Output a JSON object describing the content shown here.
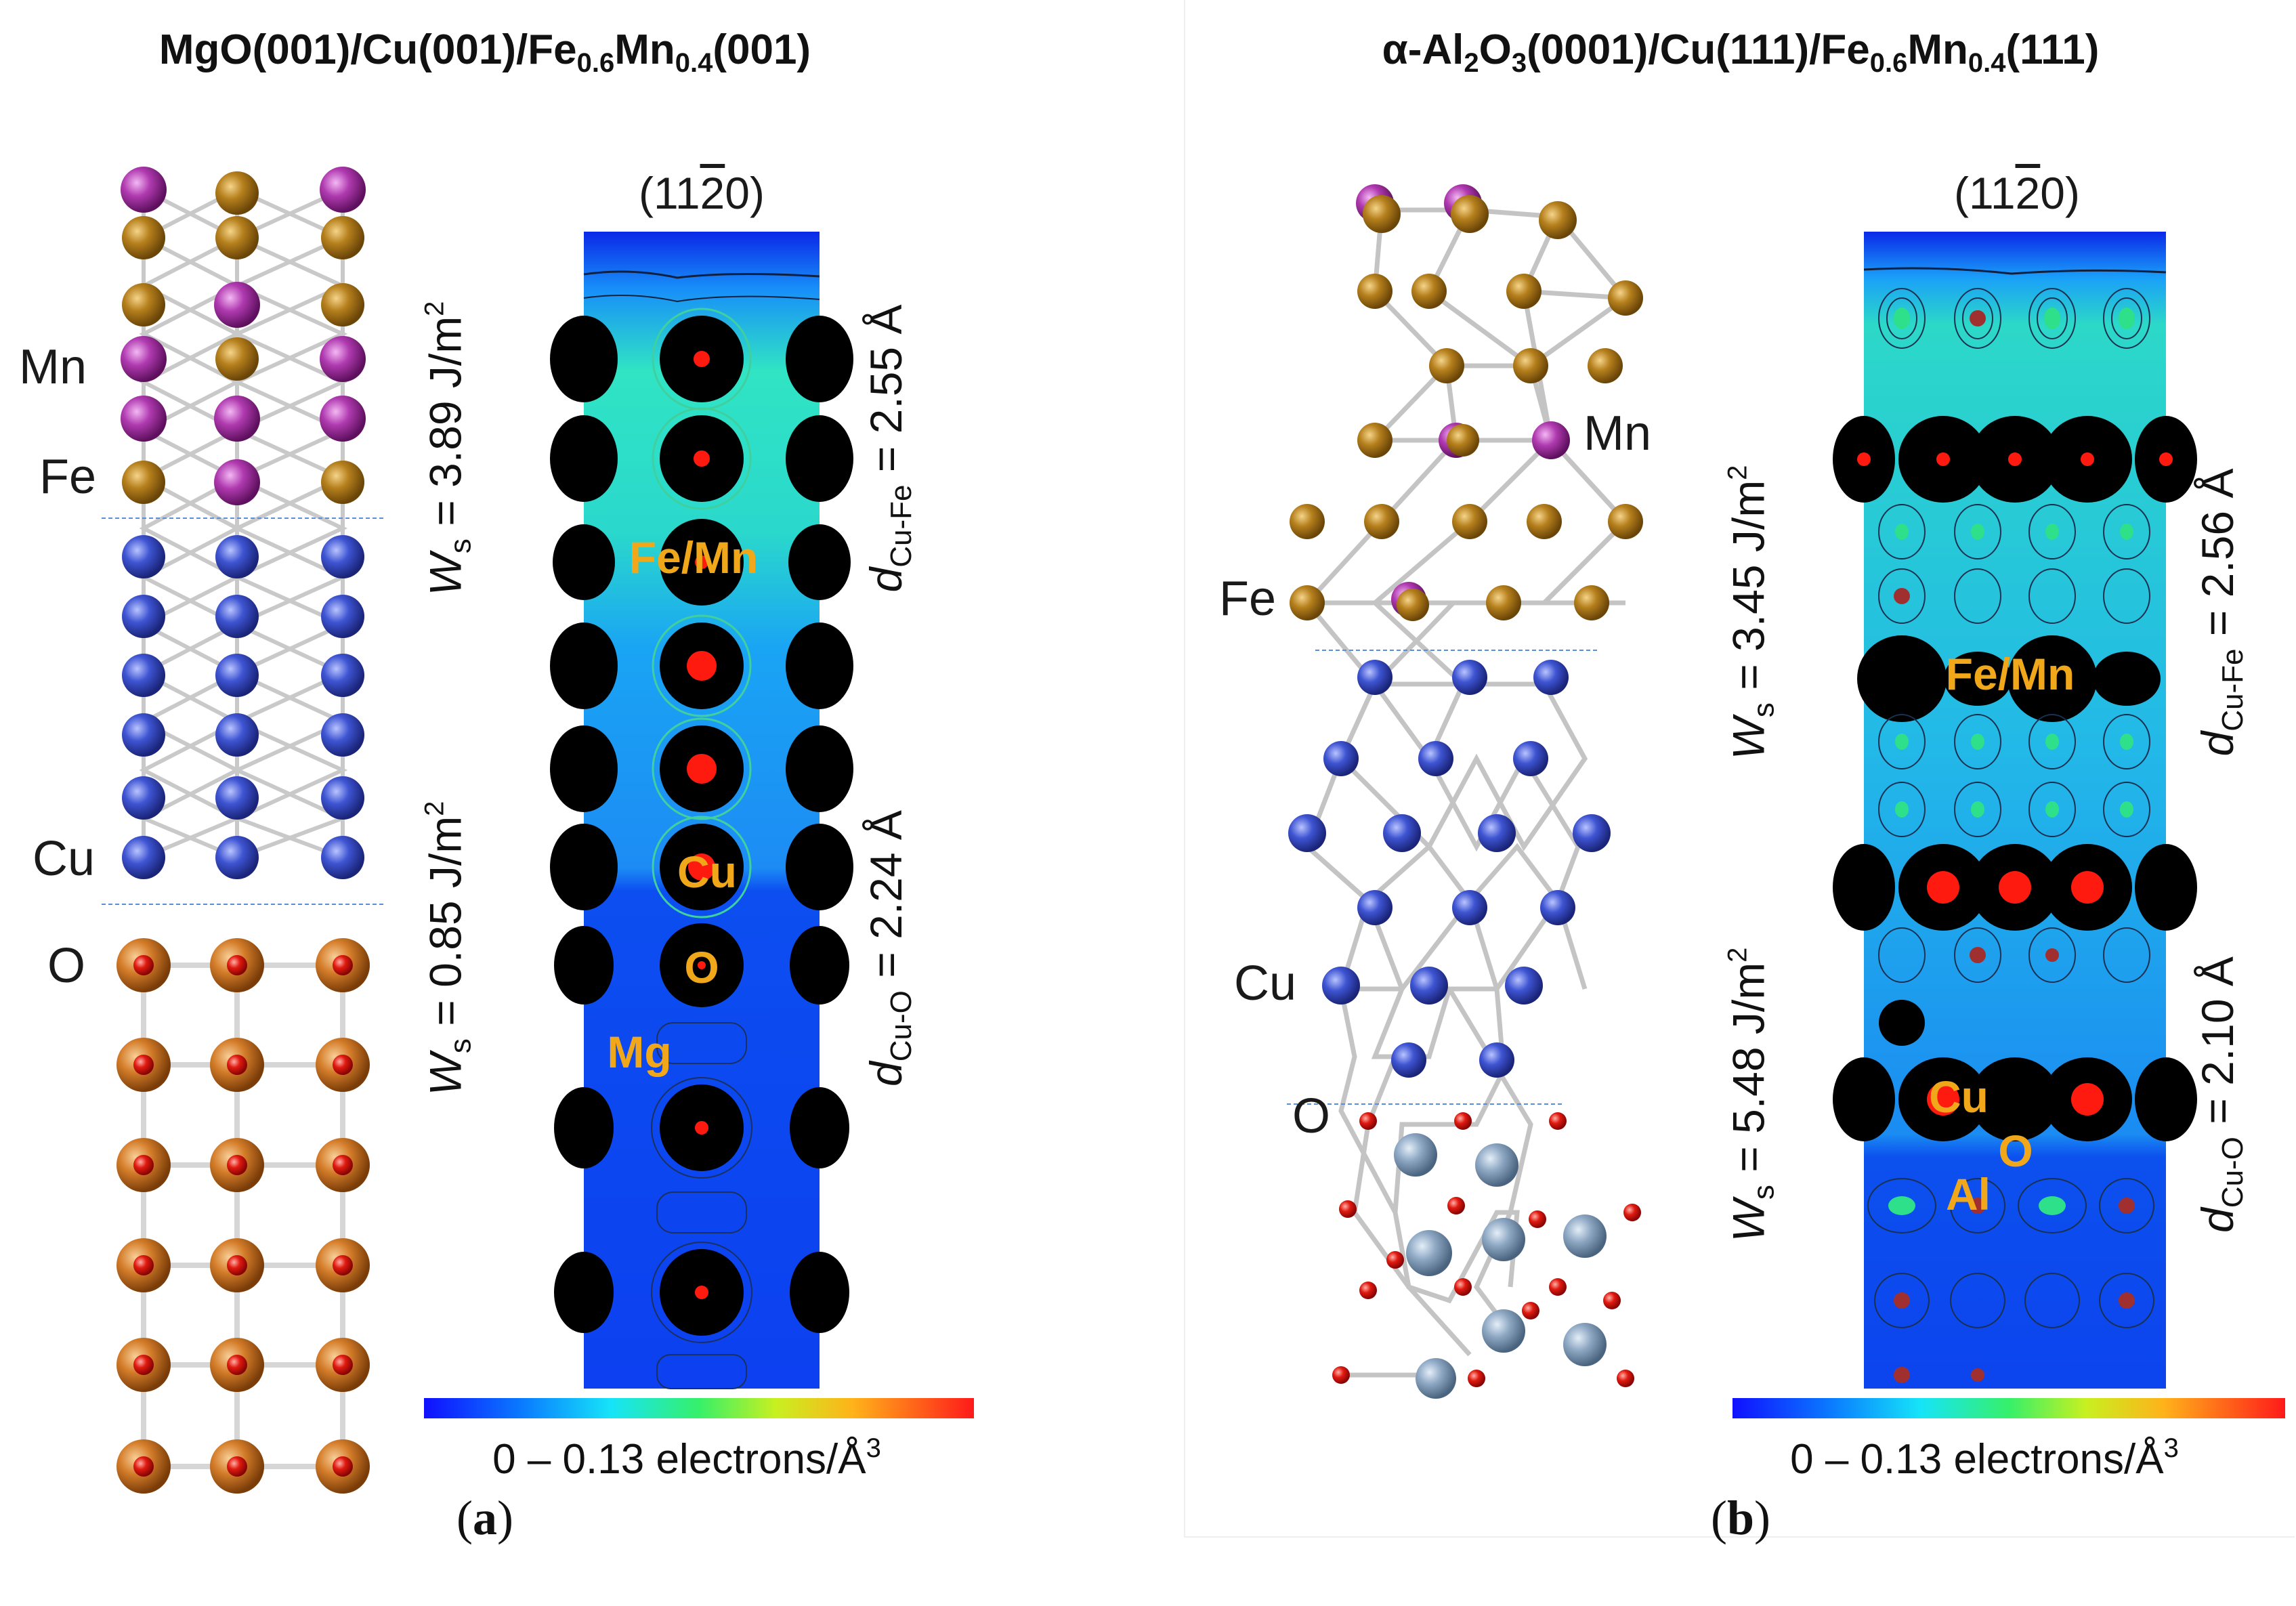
{
  "panel_a": {
    "title_main": "MgO(001)/Cu(001)/Fe",
    "title_sub1": "0.6",
    "title_mid": "Mn",
    "title_sub2": "0.4",
    "title_end": "(001)",
    "caption_open": "(",
    "caption_letter": "a",
    "caption_close": ")",
    "element_labels": {
      "mn": "Mn",
      "fe": "Fe",
      "cu": "Cu",
      "o": "O"
    },
    "plane_prefix": "(11",
    "plane_bar": "2",
    "plane_suffix": "0)",
    "ws_top": {
      "symbol": "W",
      "sub": "s",
      "value": " = 3.89 J/m",
      "exp": "2"
    },
    "ws_bottom": {
      "symbol": "W",
      "sub": "s",
      "value": " = 0.85 J/m",
      "exp": "2"
    },
    "d_top": {
      "symbol": "d",
      "sub": "Cu-Fe",
      "value": " = 2.55 Å"
    },
    "d_bottom": {
      "symbol": "d",
      "sub": "Cu-O",
      "value": " = 2.24 Å"
    },
    "map_labels": {
      "femn": "Fe/Mn",
      "cu": "Cu",
      "o": "O",
      "mg": "Mg"
    },
    "colorbar_text": "0 – 0.13 electrons/Å",
    "colorbar_exp": "3"
  },
  "panel_b": {
    "title_alpha": "α-Al",
    "title_sub0": "2",
    "title_o": "O",
    "title_sub_o": "3",
    "title_main": "(0001)/Cu(111)/Fe",
    "title_sub1": "0.6",
    "title_mid": "Mn",
    "title_sub2": "0.4",
    "title_end": "(111)",
    "caption_open": "(",
    "caption_letter": "b",
    "caption_close": ")",
    "element_labels": {
      "mn": "Mn",
      "fe": "Fe",
      "cu": "Cu",
      "o": "O"
    },
    "plane_prefix": "(11",
    "plane_bar": "2",
    "plane_suffix": "0)",
    "ws_top": {
      "symbol": "W",
      "sub": "s",
      "value": " = 3.45 J/m",
      "exp": "2"
    },
    "ws_bottom": {
      "symbol": "W",
      "sub": "s",
      "value": " = 5.48 J/m",
      "exp": "2"
    },
    "d_top": {
      "symbol": "d",
      "sub": "Cu-Fe",
      "value": " = 2.56 Å"
    },
    "d_bottom": {
      "symbol": "d",
      "sub": "Cu-O",
      "value": " = 2.10 Å"
    },
    "map_labels": {
      "femn": "Fe/Mn",
      "cu": "Cu",
      "o": "O",
      "al": "Al"
    },
    "colorbar_text": "0 – 0.13 electrons/Å",
    "colorbar_exp": "3"
  },
  "colors": {
    "mn_atom": "#a52ea5",
    "fe_atom": "#b07a17",
    "cu_atom": "#3a4fc8",
    "o_atom": "#e01010",
    "mg_atom": "#d07a28",
    "al_atom": "#8fa9c4",
    "label_gold": "#f0a81a",
    "interface_line": "#5a8ed8"
  }
}
